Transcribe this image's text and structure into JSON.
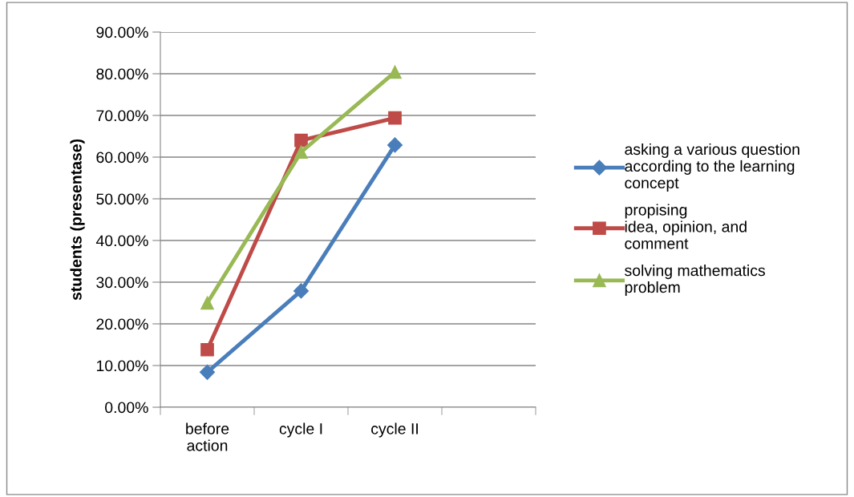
{
  "chart_data": {
    "type": "line",
    "ylabel": "students (presentase)",
    "categories": [
      "before\naction",
      "cycle I",
      "cycle II",
      null
    ],
    "series": [
      {
        "name": "asking a various question\naccording to the learning\nconcept",
        "color": "#4a7ebb",
        "marker": "diamond",
        "values": [
          8.4,
          27.9,
          62.9,
          null
        ]
      },
      {
        "name": "propising\nidea, opinion, and\ncomment",
        "color": "#be4b48",
        "marker": "square",
        "values": [
          13.8,
          64.0,
          69.4,
          null
        ]
      },
      {
        "name": "solving mathematics\nproblem",
        "color": "#98b954",
        "marker": "triangle",
        "values": [
          25.0,
          61.2,
          80.4,
          null
        ]
      }
    ],
    "ylim": [
      0,
      90
    ],
    "yticks": [
      {
        "value": 0,
        "label": "0.00%"
      },
      {
        "value": 10,
        "label": "10.00%"
      },
      {
        "value": 20,
        "label": "20.00%"
      },
      {
        "value": 30,
        "label": "30.00%"
      },
      {
        "value": 40,
        "label": "40.00%"
      },
      {
        "value": 50,
        "label": "50.00%"
      },
      {
        "value": 60,
        "label": "60.00%"
      },
      {
        "value": 70,
        "label": "70.00%"
      },
      {
        "value": 80,
        "label": "80.00%"
      },
      {
        "value": 90,
        "label": "90.00%"
      }
    ],
    "grid": "y",
    "legend": "right",
    "line_style": "solid"
  }
}
